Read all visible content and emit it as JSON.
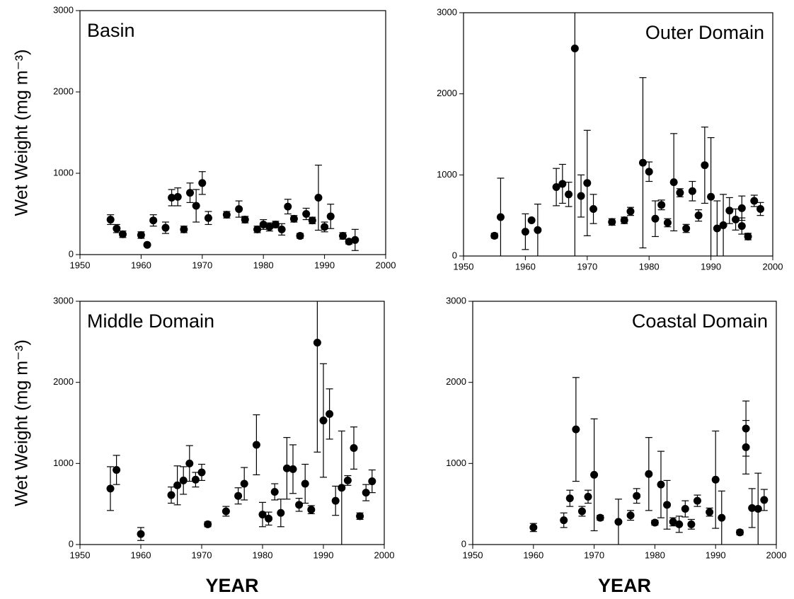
{
  "chart_data": [
    {
      "type": "scatter",
      "title": "Basin",
      "title_position": "left",
      "y_label": "Wet Weight (mg m⁻³)",
      "x": [
        1955,
        1956,
        1957,
        1960,
        1961,
        1962,
        1964,
        1965,
        1966,
        1967,
        1968,
        1969,
        1970,
        1971,
        1974,
        1976,
        1977,
        1979,
        1980,
        1981,
        1982,
        1983,
        1984,
        1985,
        1986,
        1987,
        1988,
        1989,
        1990,
        1991,
        1993,
        1994,
        1995
      ],
      "values": [
        430,
        320,
        250,
        240,
        120,
        420,
        330,
        700,
        710,
        310,
        760,
        600,
        880,
        450,
        490,
        560,
        430,
        310,
        370,
        340,
        370,
        310,
        590,
        440,
        230,
        500,
        420,
        700,
        340,
        470,
        230,
        160,
        180
      ],
      "errors": [
        60,
        50,
        40,
        40,
        null,
        70,
        70,
        100,
        110,
        40,
        120,
        200,
        140,
        80,
        40,
        100,
        40,
        40,
        60,
        50,
        40,
        70,
        90,
        40,
        30,
        70,
        40,
        400,
        60,
        150,
        40,
        30,
        130
      ],
      "xlim": [
        1950,
        2000
      ],
      "xticks": [
        1950,
        1960,
        1970,
        1980,
        1990,
        2000
      ],
      "ylim": [
        0,
        3000
      ],
      "yticks": [
        0,
        1000,
        2000,
        3000
      ],
      "color": "#000000"
    },
    {
      "type": "scatter",
      "title": "Outer Domain",
      "title_position": "right",
      "x": [
        1955,
        1956,
        1960,
        1961,
        1962,
        1965,
        1966,
        1967,
        1968,
        1969,
        1970,
        1971,
        1974,
        1976,
        1977,
        1979,
        1980,
        1981,
        1982,
        1983,
        1984,
        1985,
        1986,
        1987,
        1988,
        1989,
        1990,
        1991,
        1992,
        1993,
        1994,
        1995,
        1995,
        1996,
        1997,
        1998
      ],
      "values": [
        250,
        480,
        300,
        440,
        320,
        850,
        890,
        760,
        2560,
        740,
        900,
        580,
        420,
        440,
        550,
        1150,
        1040,
        460,
        630,
        410,
        910,
        780,
        340,
        800,
        500,
        1120,
        730,
        340,
        380,
        560,
        450,
        590,
        370,
        240,
        680,
        580
      ],
      "errors": [
        30,
        480,
        220,
        null,
        320,
        230,
        240,
        150,
        2560,
        260,
        650,
        180,
        40,
        40,
        50,
        1050,
        120,
        220,
        60,
        50,
        600,
        50,
        50,
        120,
        70,
        470,
        730,
        340,
        380,
        160,
        130,
        150,
        100,
        40,
        70,
        80
      ],
      "xlim": [
        1950,
        2000
      ],
      "xticks": [
        1950,
        1960,
        1970,
        1980,
        1990,
        2000
      ],
      "ylim": [
        0,
        3000
      ],
      "yticks": [
        0,
        1000,
        2000,
        3000
      ],
      "color": "#000000"
    },
    {
      "type": "scatter",
      "title": "Middle Domain",
      "title_position": "left",
      "y_label": "Wet Weight (mg m⁻³)",
      "x_label": "YEAR",
      "x": [
        1955,
        1956,
        1960,
        1965,
        1966,
        1967,
        1968,
        1969,
        1970,
        1971,
        1974,
        1976,
        1977,
        1979,
        1980,
        1981,
        1982,
        1983,
        1984,
        1985,
        1986,
        1987,
        1988,
        1989,
        1990,
        1991,
        1992,
        1993,
        1994,
        1995,
        1996,
        1997,
        1998
      ],
      "values": [
        690,
        920,
        130,
        610,
        730,
        790,
        1000,
        800,
        890,
        250,
        410,
        600,
        750,
        1230,
        370,
        320,
        650,
        390,
        940,
        930,
        490,
        750,
        430,
        2490,
        1530,
        1610,
        540,
        700,
        790,
        1190,
        350,
        640,
        780
      ],
      "errors": [
        270,
        180,
        80,
        100,
        240,
        170,
        220,
        90,
        100,
        30,
        60,
        100,
        200,
        370,
        150,
        80,
        100,
        170,
        380,
        300,
        80,
        240,
        50,
        1350,
        700,
        310,
        180,
        700,
        60,
        260,
        40,
        100,
        140
      ],
      "xlim": [
        1950,
        2000
      ],
      "xticks": [
        1950,
        1960,
        1970,
        1980,
        1990,
        2000
      ],
      "ylim": [
        0,
        3000
      ],
      "yticks": [
        0,
        1000,
        2000,
        3000
      ],
      "color": "#000000"
    },
    {
      "type": "scatter",
      "title": "Coastal Domain",
      "title_position": "right",
      "x_label": "YEAR",
      "x": [
        1960,
        1965,
        1966,
        1967,
        1968,
        1969,
        1970,
        1971,
        1974,
        1976,
        1977,
        1979,
        1980,
        1981,
        1982,
        1983,
        1984,
        1985,
        1986,
        1987,
        1989,
        1990,
        1991,
        1994,
        1995,
        1995,
        1996,
        1997,
        1998
      ],
      "values": [
        210,
        300,
        570,
        1420,
        410,
        590,
        860,
        330,
        280,
        360,
        600,
        870,
        270,
        740,
        490,
        280,
        250,
        440,
        250,
        540,
        400,
        800,
        330,
        150,
        1430,
        1200,
        450,
        440,
        550
      ],
      "errors": [
        50,
        90,
        100,
        640,
        60,
        80,
        690,
        30,
        280,
        60,
        90,
        450,
        30,
        410,
        300,
        50,
        100,
        100,
        60,
        70,
        50,
        600,
        330,
        30,
        340,
        330,
        240,
        440,
        130
      ],
      "xlim": [
        1950,
        2000
      ],
      "xticks": [
        1950,
        1960,
        1970,
        1980,
        1990,
        2000
      ],
      "ylim": [
        0,
        3000
      ],
      "yticks": [
        0,
        1000,
        2000,
        3000
      ],
      "color": "#000000"
    }
  ]
}
